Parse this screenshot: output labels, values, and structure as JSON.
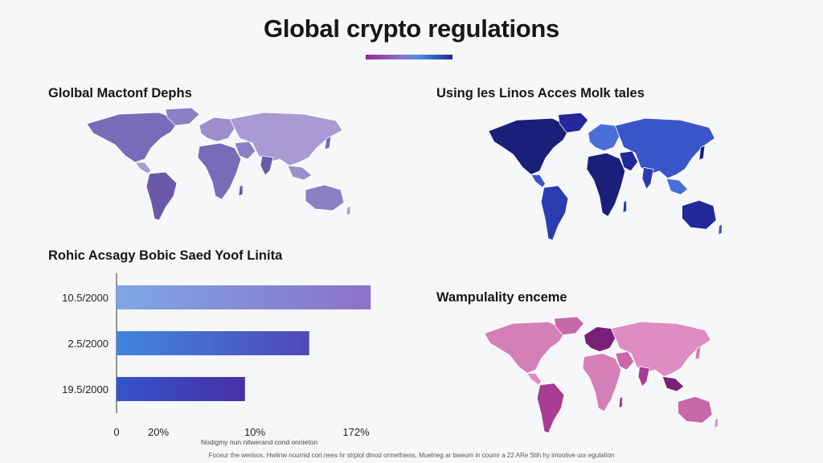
{
  "header": {
    "title": "Global crypto regulations",
    "accent_gradient": [
      "#8e2f8c",
      "#8d6fcf",
      "#4d8fe0",
      "#1f2a8e"
    ]
  },
  "maps": [
    {
      "title": "Glolbal Mactonf Dephs",
      "palette": [
        "#7a6bb8",
        "#8c7fc4",
        "#a89bd3",
        "#6a58a8",
        "#9c8fcc"
      ]
    },
    {
      "title": "Using les Linos Acces Molk tales",
      "palette": [
        "#1a1f7a",
        "#22289a",
        "#3a55c8",
        "#2b3bb0",
        "#4a6fd8"
      ]
    },
    {
      "title": "Wampulality enceme",
      "palette": [
        "#d57fb8",
        "#c868a8",
        "#e08cc4",
        "#a83c94",
        "#7a1f78"
      ]
    }
  ],
  "chart_data": {
    "type": "bar",
    "orientation": "horizontal",
    "title": "Rohic Acsagy Bobic Saed Yoof Linita",
    "categories": [
      "10.5/2000",
      "2.5/2000",
      "19.5/2000"
    ],
    "values": [
      18.6,
      14.1,
      9.4
    ],
    "x_ticks": [
      "0",
      "20%",
      "10%",
      "172%"
    ],
    "xlim": [
      0,
      20
    ],
    "xlabel": "Nodigmy nun nitwerand cond onnieton",
    "bar_gradients": [
      [
        "#7ea6e6",
        "#8c72c8"
      ],
      [
        "#3f86dc",
        "#5148b8"
      ],
      [
        "#3355cc",
        "#4a2fa6"
      ]
    ],
    "grid": false
  },
  "footer": {
    "note": "Foceur the werisos, Hwlinw noumid cori nees hr strplol dinod ormethiens, Muelneg ar bweum in coumr a 22 ARe Stih hy imootive uor egulation"
  }
}
